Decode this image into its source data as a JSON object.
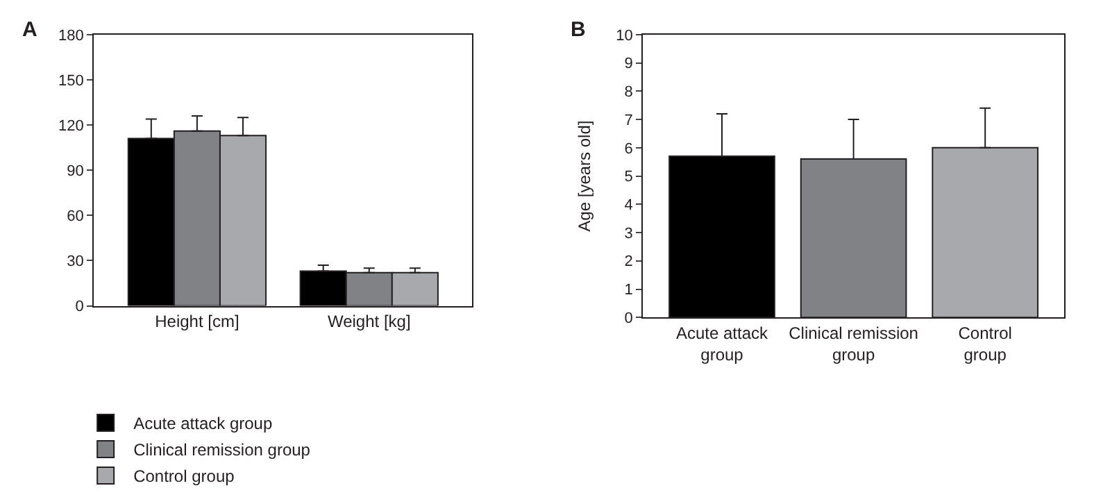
{
  "chart_data": [
    {
      "type": "bar",
      "title": "A",
      "categories": [
        "Height [cm]",
        "Weight [kg]"
      ],
      "series": [
        {
          "name": "Acute attack group",
          "color": "#000000",
          "values": [
            111,
            23
          ],
          "errors": [
            [
              111,
              124
            ],
            [
              23,
              27
            ]
          ]
        },
        {
          "name": "Clinical remission group",
          "color": "#808285",
          "values": [
            116,
            22
          ],
          "errors": [
            [
              116,
              126
            ],
            [
              22,
              25
            ]
          ]
        },
        {
          "name": "Control group",
          "color": "#a7a9ac",
          "values": [
            113,
            22
          ],
          "errors": [
            [
              113,
              125
            ],
            [
              22,
              25
            ]
          ]
        }
      ],
      "ylim": [
        0,
        180
      ],
      "yticks": [
        0,
        30,
        60,
        90,
        120,
        150,
        180
      ],
      "legend": "bottom"
    },
    {
      "type": "bar",
      "title": "B",
      "ylabel": "Age [years old]",
      "categories": [
        "Acute attack group",
        "Clinical remission group",
        "Control group"
      ],
      "values": [
        5.7,
        5.6,
        6.0
      ],
      "colors": [
        "#000000",
        "#808285",
        "#a7a9ac"
      ],
      "errors": [
        [
          5.7,
          7.2
        ],
        [
          5.6,
          7.0
        ],
        [
          6.0,
          7.4
        ]
      ],
      "ylim": [
        0,
        10
      ],
      "yticks": [
        0,
        1,
        2,
        3,
        4,
        5,
        6,
        7,
        8,
        9,
        10
      ]
    }
  ]
}
